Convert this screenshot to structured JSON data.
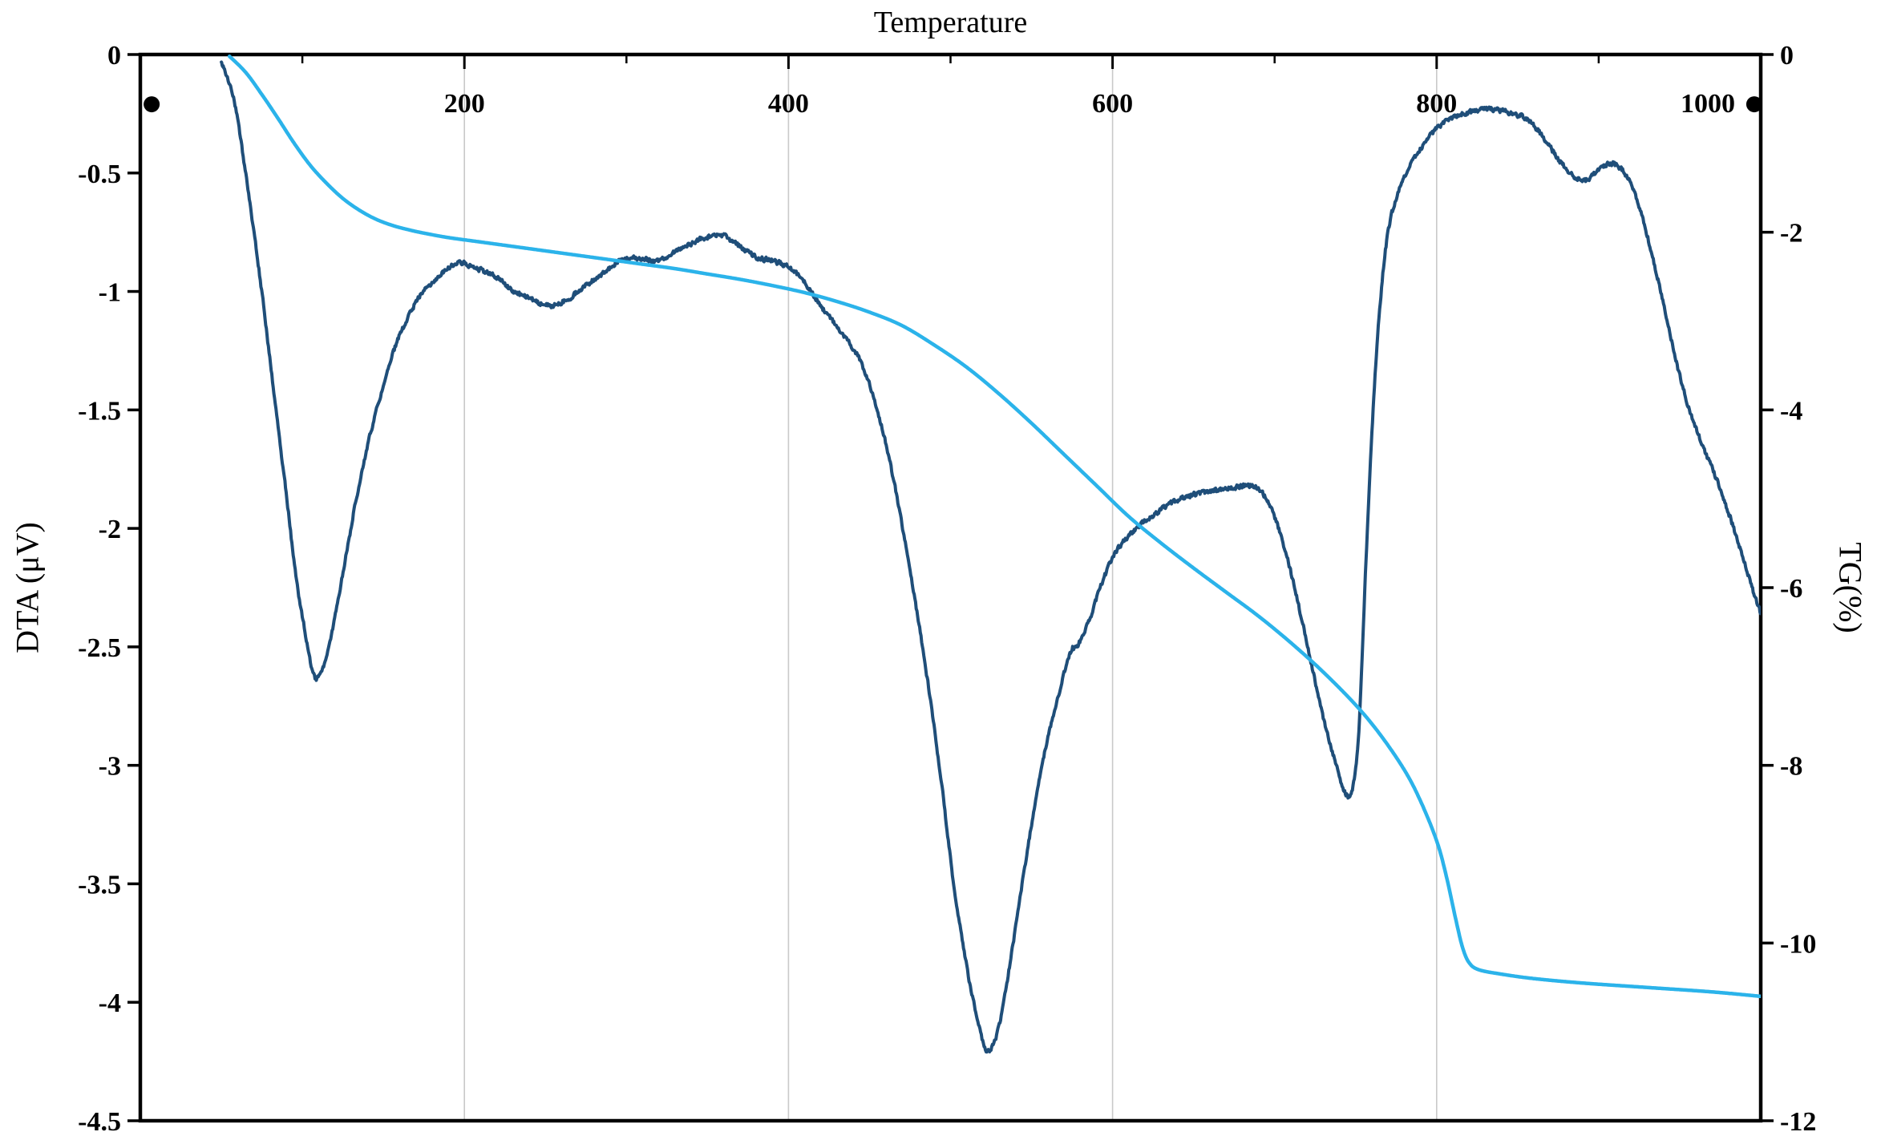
{
  "chart_data": {
    "type": "line",
    "title": "Temperature",
    "xlabel": "Temperature",
    "grid": {
      "vertical_at": [
        200,
        400,
        600,
        800
      ],
      "color": "#c9c9c9"
    },
    "axis_color": "#000000",
    "x_axis": {
      "label": "Temperature",
      "lim": [
        0,
        1000
      ],
      "major_ticks": [
        200,
        400,
        600,
        800,
        1000
      ],
      "minor_ticks": [
        100,
        300,
        500,
        700,
        900
      ],
      "tick_labels": [
        "200",
        "400",
        "600",
        "800",
        "1000"
      ]
    },
    "left_axis": {
      "label": "DTA (μV)",
      "lim": [
        -4.5,
        0
      ],
      "ticks": [
        0,
        -0.5,
        -1,
        -1.5,
        -2,
        -2.5,
        -3,
        -3.5,
        -4,
        -4.5
      ],
      "tick_labels": [
        "0",
        "-0.5",
        "-1",
        "-1.5",
        "-2",
        "-2.5",
        "-3",
        "-3.5",
        "-4",
        "-4.5"
      ]
    },
    "right_axis": {
      "label": "TG(%)",
      "lim": [
        -12,
        0
      ],
      "ticks": [
        0,
        -2,
        -4,
        -6,
        -8,
        -10,
        -12
      ],
      "tick_labels": [
        "0",
        "-2",
        "-4",
        "-6",
        "-8",
        "-10",
        "-12"
      ]
    },
    "marker_dots": [
      {
        "x": 7,
        "y_left": -0.21
      },
      {
        "x": 996,
        "y_left": -0.21
      }
    ],
    "series": [
      {
        "name": "DTA",
        "axis": "left",
        "color": "#1f4e79",
        "width": 4,
        "noise": 0.013,
        "points": [
          [
            50,
            -0.03
          ],
          [
            58,
            -0.2
          ],
          [
            66,
            -0.55
          ],
          [
            74,
            -0.95
          ],
          [
            82,
            -1.4
          ],
          [
            90,
            -1.85
          ],
          [
            96,
            -2.2
          ],
          [
            102,
            -2.45
          ],
          [
            107,
            -2.62
          ],
          [
            112,
            -2.6
          ],
          [
            118,
            -2.45
          ],
          [
            126,
            -2.15
          ],
          [
            134,
            -1.85
          ],
          [
            142,
            -1.6
          ],
          [
            150,
            -1.4
          ],
          [
            158,
            -1.22
          ],
          [
            166,
            -1.1
          ],
          [
            174,
            -1.0
          ],
          [
            182,
            -0.95
          ],
          [
            190,
            -0.9
          ],
          [
            198,
            -0.88
          ],
          [
            206,
            -0.9
          ],
          [
            214,
            -0.92
          ],
          [
            222,
            -0.95
          ],
          [
            230,
            -1.0
          ],
          [
            238,
            -1.02
          ],
          [
            246,
            -1.05
          ],
          [
            254,
            -1.06
          ],
          [
            262,
            -1.04
          ],
          [
            270,
            -1.0
          ],
          [
            278,
            -0.96
          ],
          [
            286,
            -0.92
          ],
          [
            294,
            -0.88
          ],
          [
            302,
            -0.86
          ],
          [
            310,
            -0.86
          ],
          [
            318,
            -0.87
          ],
          [
            326,
            -0.85
          ],
          [
            334,
            -0.82
          ],
          [
            342,
            -0.79
          ],
          [
            350,
            -0.77
          ],
          [
            358,
            -0.76
          ],
          [
            366,
            -0.79
          ],
          [
            374,
            -0.83
          ],
          [
            382,
            -0.86
          ],
          [
            390,
            -0.87
          ],
          [
            398,
            -0.89
          ],
          [
            406,
            -0.93
          ],
          [
            414,
            -1.0
          ],
          [
            422,
            -1.08
          ],
          [
            430,
            -1.15
          ],
          [
            438,
            -1.22
          ],
          [
            446,
            -1.32
          ],
          [
            454,
            -1.48
          ],
          [
            462,
            -1.7
          ],
          [
            470,
            -1.98
          ],
          [
            478,
            -2.3
          ],
          [
            486,
            -2.65
          ],
          [
            494,
            -3.05
          ],
          [
            502,
            -3.5
          ],
          [
            510,
            -3.85
          ],
          [
            516,
            -4.05
          ],
          [
            522,
            -4.2
          ],
          [
            528,
            -4.15
          ],
          [
            534,
            -3.95
          ],
          [
            542,
            -3.6
          ],
          [
            550,
            -3.25
          ],
          [
            558,
            -2.95
          ],
          [
            566,
            -2.72
          ],
          [
            574,
            -2.52
          ],
          [
            578,
            -2.5
          ],
          [
            586,
            -2.38
          ],
          [
            594,
            -2.22
          ],
          [
            602,
            -2.1
          ],
          [
            610,
            -2.03
          ],
          [
            618,
            -1.98
          ],
          [
            626,
            -1.94
          ],
          [
            634,
            -1.9
          ],
          [
            644,
            -1.87
          ],
          [
            654,
            -1.85
          ],
          [
            664,
            -1.84
          ],
          [
            674,
            -1.83
          ],
          [
            682,
            -1.82
          ],
          [
            690,
            -1.83
          ],
          [
            698,
            -1.92
          ],
          [
            706,
            -2.08
          ],
          [
            714,
            -2.3
          ],
          [
            722,
            -2.55
          ],
          [
            730,
            -2.8
          ],
          [
            738,
            -3.0
          ],
          [
            744,
            -3.12
          ],
          [
            748,
            -3.1
          ],
          [
            752,
            -2.85
          ],
          [
            756,
            -2.2
          ],
          [
            760,
            -1.6
          ],
          [
            764,
            -1.15
          ],
          [
            768,
            -0.85
          ],
          [
            772,
            -0.68
          ],
          [
            778,
            -0.55
          ],
          [
            786,
            -0.44
          ],
          [
            794,
            -0.36
          ],
          [
            802,
            -0.3
          ],
          [
            812,
            -0.26
          ],
          [
            822,
            -0.24
          ],
          [
            832,
            -0.23
          ],
          [
            842,
            -0.24
          ],
          [
            852,
            -0.26
          ],
          [
            860,
            -0.3
          ],
          [
            868,
            -0.37
          ],
          [
            876,
            -0.45
          ],
          [
            884,
            -0.51
          ],
          [
            892,
            -0.53
          ],
          [
            900,
            -0.49
          ],
          [
            908,
            -0.46
          ],
          [
            916,
            -0.5
          ],
          [
            924,
            -0.62
          ],
          [
            932,
            -0.82
          ],
          [
            940,
            -1.05
          ],
          [
            948,
            -1.3
          ],
          [
            956,
            -1.5
          ],
          [
            964,
            -1.65
          ],
          [
            972,
            -1.78
          ],
          [
            980,
            -1.93
          ],
          [
            988,
            -2.1
          ],
          [
            996,
            -2.28
          ],
          [
            1000,
            -2.36
          ]
        ]
      },
      {
        "name": "TG",
        "axis": "right",
        "color": "#2bb3ea",
        "width": 4.5,
        "noise": 0,
        "points": [
          [
            55,
            -0.02
          ],
          [
            65,
            -0.2
          ],
          [
            75,
            -0.45
          ],
          [
            85,
            -0.72
          ],
          [
            95,
            -1.0
          ],
          [
            105,
            -1.25
          ],
          [
            115,
            -1.45
          ],
          [
            125,
            -1.62
          ],
          [
            135,
            -1.75
          ],
          [
            145,
            -1.85
          ],
          [
            155,
            -1.92
          ],
          [
            165,
            -1.97
          ],
          [
            175,
            -2.01
          ],
          [
            190,
            -2.06
          ],
          [
            210,
            -2.11
          ],
          [
            230,
            -2.16
          ],
          [
            250,
            -2.21
          ],
          [
            270,
            -2.26
          ],
          [
            290,
            -2.31
          ],
          [
            310,
            -2.36
          ],
          [
            330,
            -2.41
          ],
          [
            350,
            -2.47
          ],
          [
            370,
            -2.53
          ],
          [
            390,
            -2.6
          ],
          [
            410,
            -2.68
          ],
          [
            430,
            -2.78
          ],
          [
            450,
            -2.9
          ],
          [
            470,
            -3.05
          ],
          [
            490,
            -3.27
          ],
          [
            510,
            -3.52
          ],
          [
            530,
            -3.82
          ],
          [
            550,
            -4.15
          ],
          [
            570,
            -4.5
          ],
          [
            590,
            -4.85
          ],
          [
            610,
            -5.2
          ],
          [
            630,
            -5.5
          ],
          [
            650,
            -5.78
          ],
          [
            670,
            -6.05
          ],
          [
            690,
            -6.32
          ],
          [
            710,
            -6.62
          ],
          [
            730,
            -6.95
          ],
          [
            750,
            -7.32
          ],
          [
            765,
            -7.65
          ],
          [
            780,
            -8.05
          ],
          [
            790,
            -8.4
          ],
          [
            800,
            -8.85
          ],
          [
            806,
            -9.25
          ],
          [
            812,
            -9.75
          ],
          [
            816,
            -10.05
          ],
          [
            820,
            -10.22
          ],
          [
            826,
            -10.3
          ],
          [
            840,
            -10.35
          ],
          [
            860,
            -10.4
          ],
          [
            890,
            -10.45
          ],
          [
            930,
            -10.5
          ],
          [
            970,
            -10.55
          ],
          [
            1000,
            -10.6
          ]
        ]
      }
    ]
  }
}
